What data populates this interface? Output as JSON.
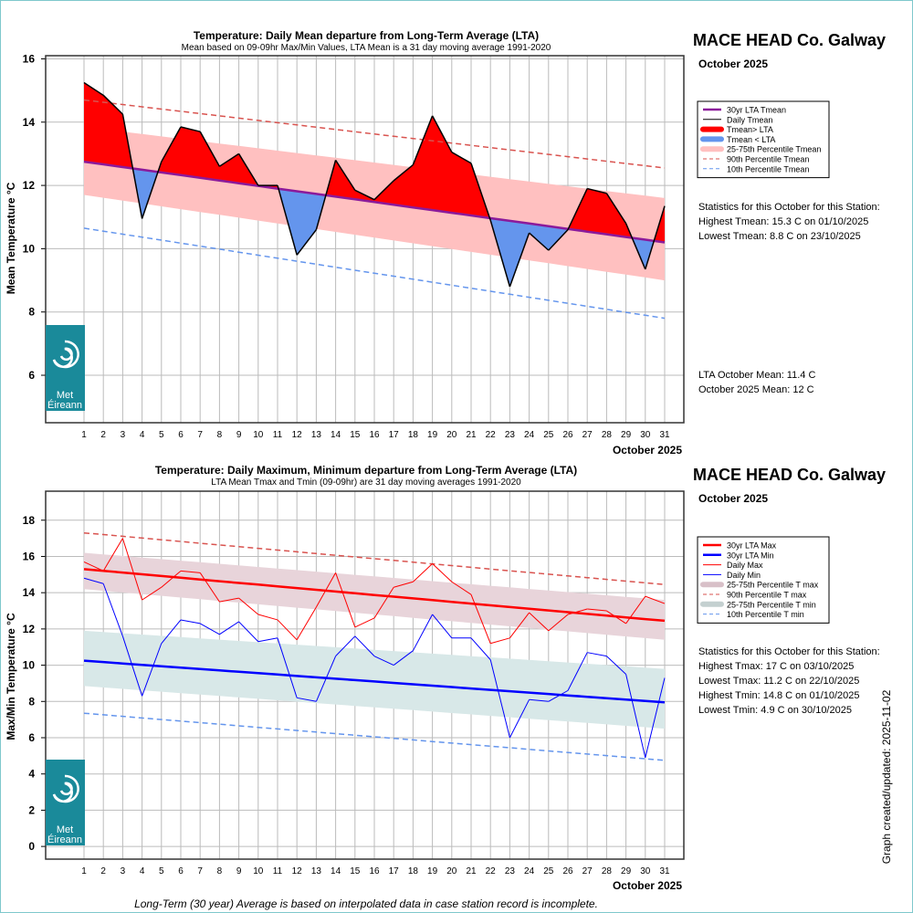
{
  "colors": {
    "above": "#ff0000",
    "below": "#6495ed",
    "lta_mean": "#8b1a9b",
    "band_mean": "#ffc0c0",
    "p90": "#d9534f",
    "p10": "#6495ed",
    "max": "#ff0000",
    "min": "#0000ff",
    "band_max": "#e8d4da",
    "band_min": "#d8e8e8",
    "logo": "#1a8a9a"
  },
  "logo": {
    "line1": "Met",
    "line2": "Éireann"
  },
  "footer": "Long-Term (30 year) Average is based on interpolated data in case station record is incomplete.",
  "updated": "Graph created/updated:  2025-11-02",
  "chart_data": [
    {
      "type": "area",
      "title": "Temperature: Daily Mean departure from Long-Term Average (LTA)",
      "subtitle": "Mean based on 09-09hr Max/Min Values, LTA Mean is a 31 day moving average 1991-2020",
      "station": "MACE HEAD Co. Galway",
      "period": "October 2025",
      "xlabel": "October 2025",
      "ylabel": "Mean Temperature °C",
      "ylim": [
        4.5,
        16.1
      ],
      "yticks": [
        "6",
        "8",
        "10",
        "12",
        "14",
        "16"
      ],
      "x": [
        "1",
        "2",
        "3",
        "4",
        "5",
        "6",
        "7",
        "8",
        "9",
        "10",
        "11",
        "12",
        "13",
        "14",
        "15",
        "16",
        "17",
        "18",
        "19",
        "20",
        "21",
        "22",
        "23",
        "24",
        "25",
        "26",
        "27",
        "28",
        "29",
        "30",
        "31"
      ],
      "legend": [
        "30yr LTA Tmean",
        "Daily Tmean",
        "Tmean> LTA",
        "Tmean < LTA",
        "25-75th Percentile Tmean",
        "90th Percentile Tmean",
        "10th Percentile Tmean"
      ],
      "series": {
        "daily": [
          15.25,
          14.85,
          14.25,
          10.95,
          12.75,
          13.85,
          13.7,
          12.6,
          13.0,
          12.0,
          12.0,
          9.8,
          10.6,
          12.8,
          11.85,
          11.55,
          12.15,
          12.65,
          14.2,
          13.05,
          12.7,
          10.9,
          8.8,
          10.5,
          9.95,
          10.6,
          11.9,
          11.75,
          10.8,
          9.35,
          11.35
        ],
        "lta": [
          12.75,
          10.2
        ],
        "p25": [
          11.7,
          9.0
        ],
        "p75": [
          13.85,
          11.6
        ],
        "p90": [
          14.7,
          12.55
        ],
        "p10": [
          10.65,
          7.8
        ]
      },
      "stats_title": "Statistics for this October for this Station:",
      "stats": [
        "Highest Tmean: 15.3 C on 01/10/2025",
        "Lowest Tmean: 8.8 C on 23/10/2025"
      ],
      "means": [
        "LTA October Mean: 11.4 C",
        "October 2025 Mean: 12 C"
      ]
    },
    {
      "type": "line",
      "title": "Temperature: Daily Maximum, Minimum departure from Long-Term Average (LTA)",
      "subtitle": "LTA Mean Tmax and Tmin (09-09hr) are 31 day moving averages 1991-2020",
      "station": "MACE HEAD Co. Galway",
      "period": "October 2025",
      "xlabel": "October 2025",
      "ylabel": "Max/Min Temperature °C",
      "ylim": [
        -0.7,
        19.6
      ],
      "yticks": [
        "0",
        "2",
        "4",
        "6",
        "8",
        "10",
        "12",
        "14",
        "16",
        "18"
      ],
      "x": [
        "1",
        "2",
        "3",
        "4",
        "5",
        "6",
        "7",
        "8",
        "9",
        "10",
        "11",
        "12",
        "13",
        "14",
        "15",
        "16",
        "17",
        "18",
        "19",
        "20",
        "21",
        "22",
        "23",
        "24",
        "25",
        "26",
        "27",
        "28",
        "29",
        "30",
        "31"
      ],
      "legend": [
        "30yr LTA Max",
        "30yr LTA Min",
        "Daily Max",
        "Daily Min",
        "25-75th Percentile T max",
        "90th Percentile T max",
        "25-75th Percentile T min",
        "10th Percentile T min"
      ],
      "series": {
        "tmax": [
          15.7,
          15.2,
          17.0,
          13.6,
          14.3,
          15.2,
          15.1,
          13.5,
          13.7,
          12.8,
          12.5,
          11.4,
          13.2,
          15.1,
          12.1,
          12.6,
          14.3,
          14.6,
          15.6,
          14.6,
          13.9,
          11.2,
          11.5,
          12.9,
          11.9,
          12.8,
          13.1,
          13.0,
          12.3,
          13.8,
          13.4
        ],
        "tmin": [
          14.8,
          14.5,
          11.6,
          8.3,
          11.2,
          12.5,
          12.3,
          11.7,
          12.4,
          11.3,
          11.5,
          8.2,
          8.0,
          10.5,
          11.6,
          10.5,
          10.0,
          10.8,
          12.8,
          11.5,
          11.5,
          10.3,
          6.0,
          8.1,
          8.0,
          8.6,
          10.7,
          10.5,
          9.5,
          4.9,
          9.3
        ],
        "lta_max": [
          15.3,
          12.45
        ],
        "lta_min": [
          10.25,
          7.95
        ],
        "max_p25": [
          14.2,
          11.4
        ],
        "max_p75": [
          16.2,
          13.6
        ],
        "min_p25": [
          8.85,
          6.5
        ],
        "min_p75": [
          11.9,
          9.8
        ],
        "p90_max": [
          17.3,
          14.45
        ],
        "p10_min": [
          7.35,
          4.75
        ]
      },
      "stats_title": "Statistics for this October for this Station:",
      "stats": [
        "Highest Tmax: 17 C on 03/10/2025",
        "Lowest Tmax: 11.2 C on 22/10/2025",
        "Highest Tmin: 14.8 C on 01/10/2025",
        "Lowest Tmin: 4.9 C on 30/10/2025"
      ]
    }
  ]
}
